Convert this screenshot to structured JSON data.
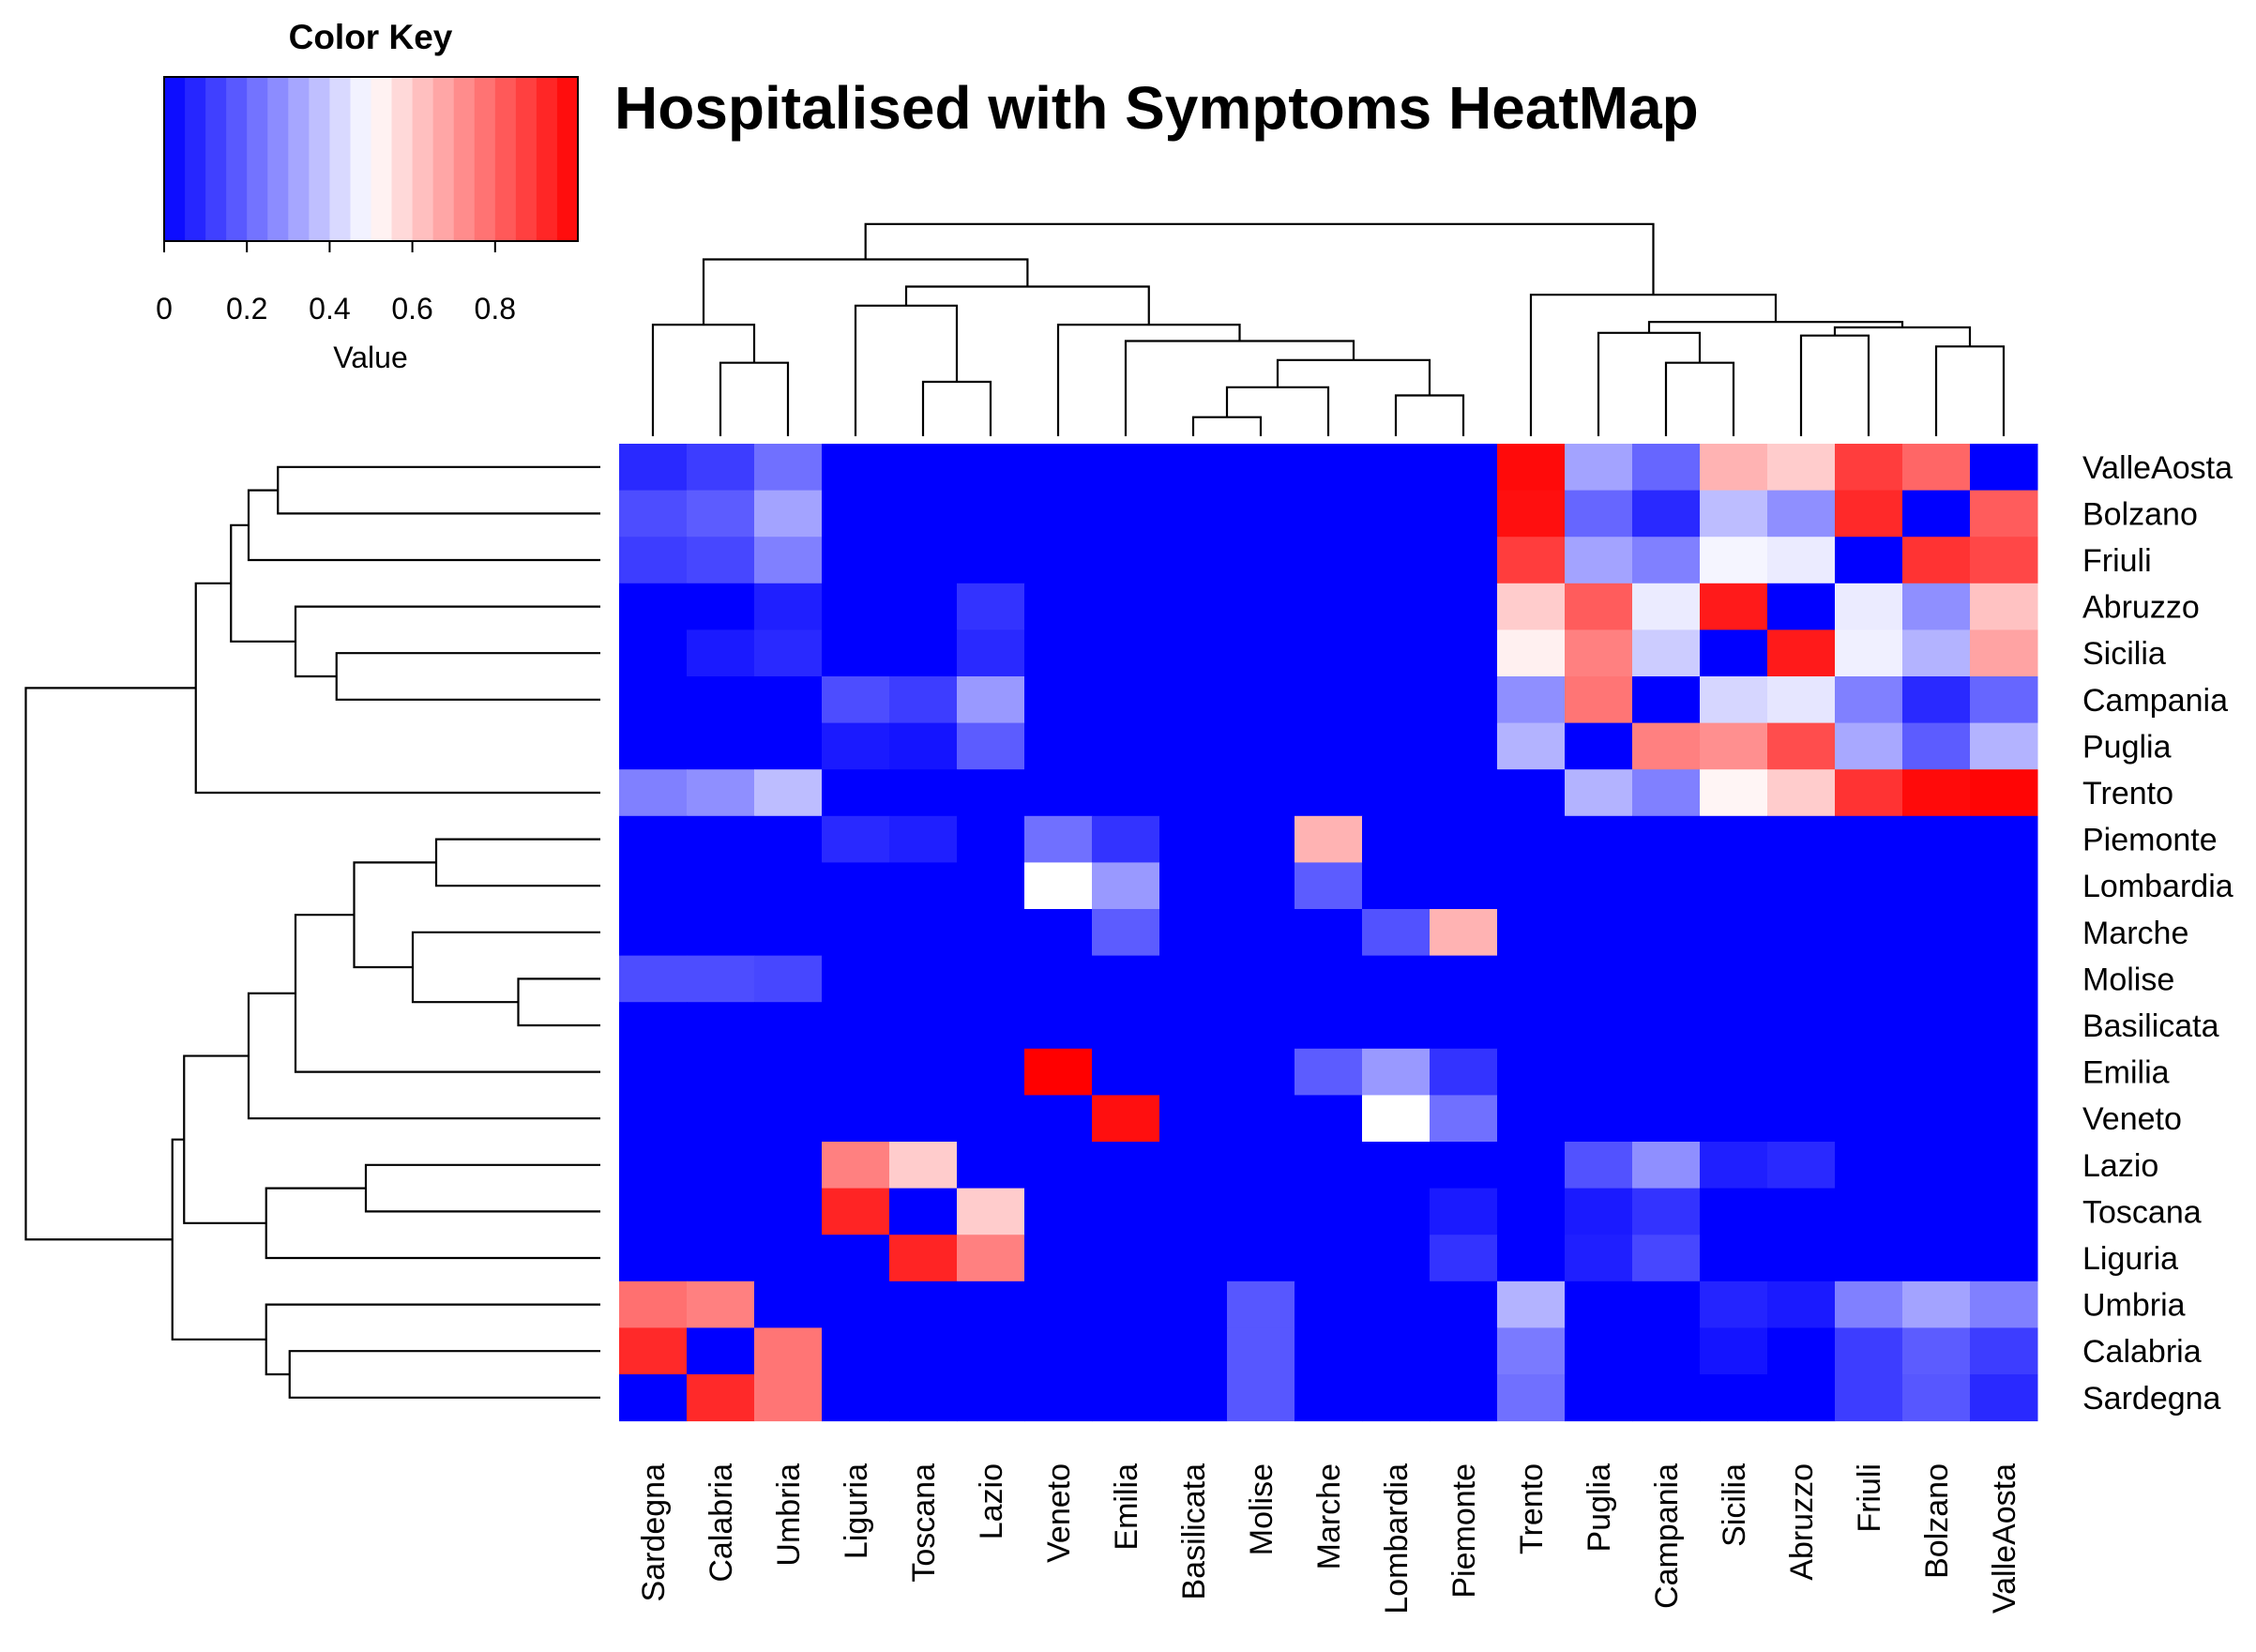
{
  "chart_data": {
    "type": "heatmap",
    "title": "Hospitalised with Symptoms HeatMap",
    "color_key": {
      "title": "Color Key",
      "xlabel": "Value",
      "range": [
        0,
        1
      ],
      "ticks": [
        {
          "value": 0,
          "label": "0"
        },
        {
          "value": 0.2,
          "label": "0.2"
        },
        {
          "value": 0.4,
          "label": "0.4"
        },
        {
          "value": 0.6,
          "label": "0.6"
        },
        {
          "value": 0.8,
          "label": "0.8"
        }
      ],
      "low_color": "#0000ff",
      "mid_color": "#ffffff",
      "high_color": "#ff0000",
      "bins": 20
    },
    "columns": [
      "Sardegna",
      "Calabria",
      "Umbria",
      "Liguria",
      "Toscana",
      "Lazio",
      "Veneto",
      "Emilia",
      "Basilicata",
      "Molise",
      "Marche",
      "Lombardia",
      "Piemonte",
      "Trento",
      "Puglia",
      "Campania",
      "Sicilia",
      "Abruzzo",
      "Friuli",
      "Bolzano",
      "ValleAosta"
    ],
    "rows": [
      "ValleAosta",
      "Bolzano",
      "Friuli",
      "Abruzzo",
      "Sicilia",
      "Campania",
      "Puglia",
      "Trento",
      "Piemonte",
      "Lombardia",
      "Marche",
      "Molise",
      "Basilicata",
      "Emilia",
      "Veneto",
      "Lazio",
      "Toscana",
      "Liguria",
      "Umbria",
      "Calabria",
      "Sardegna"
    ],
    "values": [
      [
        0.08,
        0.12,
        0.22,
        0,
        0,
        0,
        0,
        0,
        0,
        0,
        0,
        0,
        0,
        0.98,
        0.32,
        0.2,
        0.65,
        0.6,
        0.88,
        0.8,
        0
      ],
      [
        0.15,
        0.18,
        0.32,
        0,
        0,
        0,
        0,
        0,
        0,
        0,
        0,
        0,
        0,
        0.97,
        0.2,
        0.08,
        0.37,
        0.28,
        0.92,
        0,
        0.82
      ],
      [
        0.12,
        0.14,
        0.25,
        0,
        0,
        0,
        0,
        0,
        0,
        0,
        0,
        0,
        0,
        0.88,
        0.32,
        0.25,
        0.48,
        0.46,
        0,
        0.9,
        0.86
      ],
      [
        0,
        0,
        0.06,
        0,
        0,
        0.1,
        0,
        0,
        0,
        0,
        0,
        0,
        0,
        0.6,
        0.82,
        0.46,
        0.95,
        0,
        0.46,
        0.28,
        0.62
      ],
      [
        0,
        0.05,
        0.08,
        0,
        0,
        0.08,
        0,
        0,
        0,
        0,
        0,
        0,
        0,
        0.53,
        0.75,
        0.4,
        0,
        0.95,
        0.47,
        0.35,
        0.68
      ],
      [
        0,
        0,
        0,
        0.15,
        0.12,
        0.3,
        0,
        0,
        0,
        0,
        0,
        0,
        0,
        0.28,
        0.77,
        0,
        0.42,
        0.45,
        0.25,
        0.08,
        0.2
      ],
      [
        0,
        0,
        0,
        0.05,
        0.04,
        0.18,
        0,
        0,
        0,
        0,
        0,
        0,
        0,
        0.35,
        0,
        0.75,
        0.72,
        0.85,
        0.33,
        0.18,
        0.35
      ],
      [
        0.25,
        0.28,
        0.37,
        0,
        0,
        0,
        0,
        0,
        0,
        0,
        0,
        0,
        0,
        0,
        0.35,
        0.25,
        0.52,
        0.6,
        0.9,
        0.98,
        0.99
      ],
      [
        0,
        0,
        0,
        0.08,
        0.06,
        0,
        0.22,
        0.1,
        0,
        0,
        0.65,
        0,
        0,
        0,
        0,
        0,
        0,
        0,
        0,
        0,
        0
      ],
      [
        0,
        0,
        0,
        0,
        0,
        0,
        0.5,
        0.3,
        0,
        0,
        0.18,
        0,
        0,
        0,
        0,
        0,
        0,
        0,
        0,
        0,
        0
      ],
      [
        0,
        0,
        0,
        0,
        0,
        0,
        0,
        0.18,
        0,
        0,
        0,
        0.16,
        0.65,
        0,
        0,
        0,
        0,
        0,
        0,
        0,
        0
      ],
      [
        0.15,
        0.15,
        0.14,
        0,
        0,
        0,
        0,
        0,
        0,
        0,
        0,
        0,
        0,
        0,
        0,
        0,
        0,
        0,
        0,
        0,
        0
      ],
      [
        0,
        0,
        0,
        0,
        0,
        0,
        0,
        0,
        0,
        0,
        0,
        0,
        0,
        0,
        0,
        0,
        0,
        0,
        0,
        0,
        0
      ],
      [
        0,
        0,
        0,
        0,
        0,
        0,
        1,
        0,
        0,
        0,
        0.18,
        0.3,
        0.1,
        0,
        0,
        0,
        0,
        0,
        0,
        0,
        0
      ],
      [
        0,
        0,
        0,
        0,
        0,
        0,
        0,
        0.97,
        0,
        0,
        0,
        0.5,
        0.22,
        0,
        0,
        0,
        0,
        0,
        0,
        0,
        0
      ],
      [
        0,
        0,
        0,
        0.75,
        0.6,
        0,
        0,
        0,
        0,
        0,
        0,
        0,
        0,
        0,
        0.16,
        0.28,
        0.06,
        0.08,
        0,
        0,
        0
      ],
      [
        0,
        0,
        0,
        0.93,
        0,
        0.6,
        0,
        0,
        0,
        0,
        0,
        0,
        0.05,
        0,
        0.05,
        0.1,
        0,
        0,
        0,
        0,
        0
      ],
      [
        0,
        0,
        0,
        0,
        0.93,
        0.75,
        0,
        0,
        0,
        0,
        0,
        0,
        0.1,
        0,
        0.06,
        0.14,
        0,
        0,
        0,
        0,
        0
      ],
      [
        0.78,
        0.75,
        0,
        0,
        0,
        0,
        0,
        0,
        0,
        0.17,
        0,
        0,
        0,
        0.35,
        0,
        0,
        0.07,
        0.05,
        0.25,
        0.32,
        0.25
      ],
      [
        0.92,
        0,
        0.77,
        0,
        0,
        0,
        0,
        0,
        0,
        0.17,
        0,
        0,
        0,
        0.24,
        0,
        0,
        0.04,
        0,
        0.12,
        0.18,
        0.12
      ],
      [
        0,
        0.92,
        0.77,
        0,
        0,
        0,
        0,
        0,
        0,
        0.17,
        0,
        0,
        0,
        0.22,
        0,
        0,
        0,
        0,
        0.12,
        0.17,
        0.08
      ]
    ],
    "col_dendrogram": {
      "merges": [
        {
          "a": "Calabria",
          "b": "Umbria",
          "h": 0.27
        },
        {
          "a": "Sardegna",
          "b": 0,
          "h": 0.41
        },
        {
          "a": "Toscana",
          "b": "Lazio",
          "h": 0.2
        },
        {
          "a": "Liguria",
          "b": 2,
          "h": 0.48
        },
        {
          "a": "Basilicata",
          "b": "Molise",
          "h": 0.07
        },
        {
          "a": 4,
          "b": "Marche",
          "h": 0.18
        },
        {
          "a": "Lombardia",
          "b": "Piemonte",
          "h": 0.15
        },
        {
          "a": 5,
          "b": 6,
          "h": 0.28
        },
        {
          "a": "Emilia",
          "b": 7,
          "h": 0.35
        },
        {
          "a": "Veneto",
          "b": 8,
          "h": 0.41
        },
        {
          "a": 3,
          "b": 9,
          "h": 0.55
        },
        {
          "a": 1,
          "b": 10,
          "h": 0.65
        },
        {
          "a": "Campania",
          "b": "Sicilia",
          "h": 0.27
        },
        {
          "a": "Puglia",
          "b": 12,
          "h": 0.38
        },
        {
          "a": "Bolzano",
          "b": "ValleAosta",
          "h": 0.33
        },
        {
          "a": "Abruzzo",
          "b": "Friuli",
          "h": 0.37
        },
        {
          "a": 15,
          "b": 14,
          "h": 0.4
        },
        {
          "a": 13,
          "b": 16,
          "h": 0.42
        },
        {
          "a": "Trento",
          "b": 17,
          "h": 0.52
        },
        {
          "a": 11,
          "b": 18,
          "h": 0.78
        }
      ]
    },
    "row_dendrogram": {
      "merges": [
        {
          "a": "ValleAosta",
          "b": "Bolzano",
          "h": 0.55
        },
        {
          "a": 0,
          "b": "Friuli",
          "h": 0.6
        },
        {
          "a": "Sicilia",
          "b": "Campania",
          "h": 0.45
        },
        {
          "a": "Abruzzo",
          "b": 2,
          "h": 0.52
        },
        {
          "a": 1,
          "b": 3,
          "h": 0.63
        },
        {
          "a": 4,
          "b": "Trento",
          "h": 0.69
        },
        {
          "a": "Molise",
          "b": "Basilicata",
          "h": 0.14
        },
        {
          "a": "Piemonte",
          "b": "Lombardia",
          "h": 0.28
        },
        {
          "a": "Marche",
          "b": 6,
          "h": 0.32
        },
        {
          "a": 7,
          "b": 8,
          "h": 0.42
        },
        {
          "a": 9,
          "b": "Emilia",
          "h": 0.52
        },
        {
          "a": 10,
          "b": "Veneto",
          "h": 0.6
        },
        {
          "a": "Lazio",
          "b": "Toscana",
          "h": 0.4
        },
        {
          "a": 12,
          "b": "Liguria",
          "h": 0.57
        },
        {
          "a": "Calabria",
          "b": "Sardegna",
          "h": 0.53
        },
        {
          "a": "Umbria",
          "b": 14,
          "h": 0.57
        },
        {
          "a": 11,
          "b": 13,
          "h": 0.71
        },
        {
          "a": 16,
          "b": 15,
          "h": 0.73
        },
        {
          "a": 5,
          "b": 17,
          "h": 0.98
        }
      ]
    }
  }
}
